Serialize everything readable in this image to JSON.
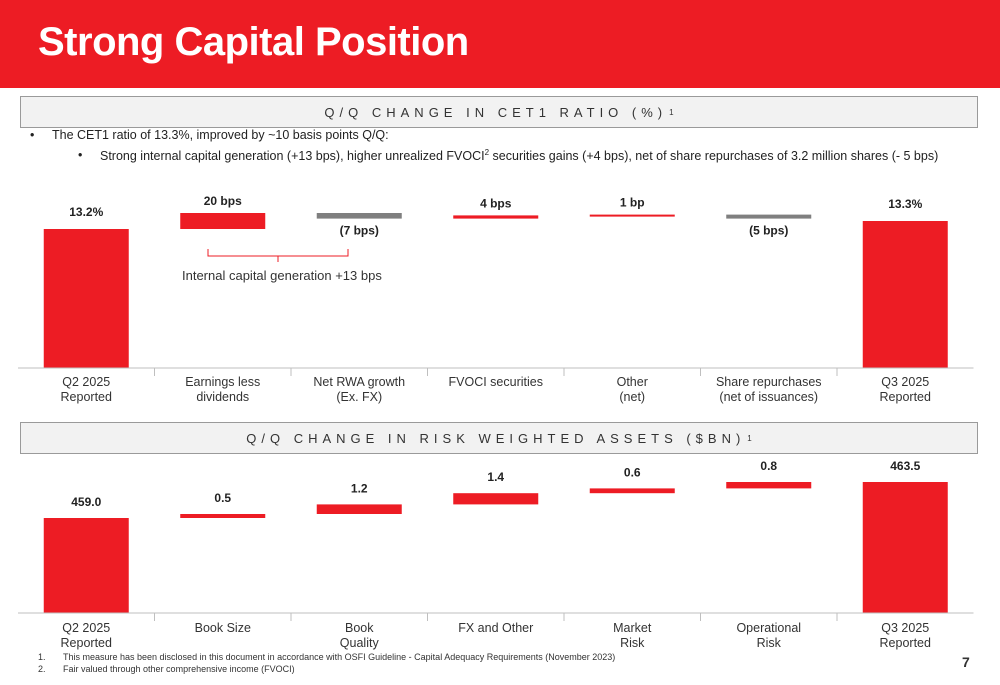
{
  "title": "Strong Capital Position",
  "colors": {
    "accent": "#ED1C24",
    "negative": "#7F7F7F",
    "header_bg": "#F2F2F2"
  },
  "section1": {
    "header": "Q/Q CHANGE IN CET1 RATIO (%)",
    "header_sup": "1",
    "bullet_main": "The CET1 ratio of 13.3%, improved by ~10 basis points Q/Q:",
    "bullet_sub_a": "Strong internal capital generation (+13 bps), higher unrealized FVOCI",
    "bullet_sub_sup": "2",
    "bullet_sub_b": " securities gains (+4 bps), net of share repurchases of 3.2 million shares (- 5 bps)",
    "bracket_label": "Internal capital generation +13 bps"
  },
  "section2": {
    "header": "Q/Q CHANGE IN RISK WEIGHTED ASSETS ($BN)",
    "header_sup": "1"
  },
  "chart_data": [
    {
      "type": "bar",
      "subtype": "waterfall",
      "title": "Q/Q CHANGE IN CET1 RATIO (%)",
      "units": "bps",
      "categories": [
        "Q2 2025\nReported",
        "Earnings less\ndividends",
        "Net RWA growth\n(Ex. FX)",
        "FVOCI securities",
        "Other\n(net)",
        "Share repurchases\n(net of issuances)",
        "Q3 2025\nReported"
      ],
      "values": [
        13.2,
        20,
        -7,
        4,
        1,
        -5,
        13.3
      ],
      "kinds": [
        "total",
        "increase",
        "decrease",
        "increase",
        "increase",
        "decrease",
        "total"
      ],
      "labels": [
        "13.2%",
        "20 bps",
        "(7 bps)",
        "4 bps",
        "1 bp",
        "(5 bps)",
        "13.3%"
      ]
    },
    {
      "type": "bar",
      "subtype": "waterfall",
      "title": "Q/Q CHANGE IN RISK WEIGHTED ASSETS ($BN)",
      "units": "$BN",
      "categories": [
        "Q2 2025\nReported",
        "Book Size",
        "Book\nQuality",
        "FX and Other",
        "Market\nRisk",
        "Operational\nRisk",
        "Q3 2025\nReported"
      ],
      "values": [
        459.0,
        0.5,
        1.2,
        1.4,
        0.6,
        0.8,
        463.5
      ],
      "kinds": [
        "total",
        "increase",
        "increase",
        "increase",
        "increase",
        "increase",
        "total"
      ],
      "labels": [
        "459.0",
        "0.5",
        "1.2",
        "1.4",
        "0.6",
        "0.8",
        "463.5"
      ]
    }
  ],
  "footnotes": [
    {
      "num": "1.",
      "text": "This measure has been disclosed in this document in accordance with OSFI Guideline - Capital Adequacy Requirements (November 2023)"
    },
    {
      "num": "2.",
      "text": "Fair valued through other comprehensive income (FVOCI)"
    }
  ],
  "page_number": "7"
}
